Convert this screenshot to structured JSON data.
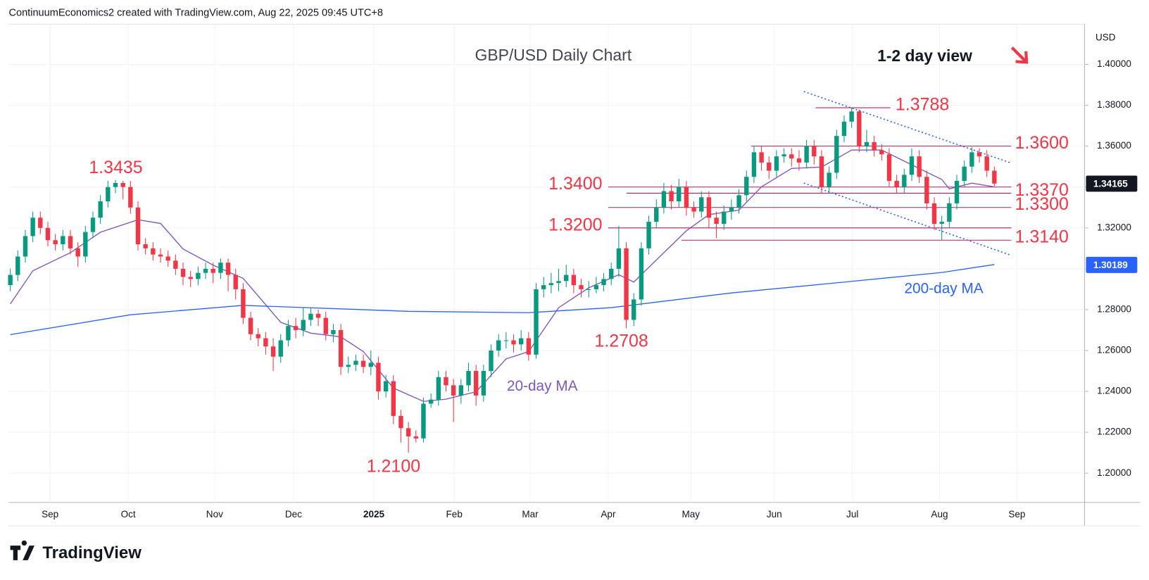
{
  "header": "ContinuumEconomics2 created with TradingView.com, Aug 22, 2025 09:45 UTC+8",
  "brand": "TradingView",
  "chart_data": {
    "type": "candlestick",
    "title": "GBP/USD Daily Chart",
    "view_label": "1-2 day view",
    "currency": "USD",
    "grid": true,
    "xlim": [
      -0.2,
      143
    ],
    "xticks": [
      {
        "value": 5.3,
        "label": "Sep"
      },
      {
        "value": 15.7,
        "label": "Oct"
      },
      {
        "value": 27.2,
        "label": "Nov"
      },
      {
        "value": 37.7,
        "label": "Dec"
      },
      {
        "value": 48.4,
        "label": "2025"
      },
      {
        "value": 59.1,
        "label": "Feb"
      },
      {
        "value": 69.2,
        "label": "Mar"
      },
      {
        "value": 79.6,
        "label": "Apr"
      },
      {
        "value": 90.6,
        "label": "May"
      },
      {
        "value": 101.7,
        "label": "Jun"
      },
      {
        "value": 112.1,
        "label": "Jul"
      },
      {
        "value": 123.7,
        "label": "Aug"
      },
      {
        "value": 134.0,
        "label": "Sep"
      }
    ],
    "ylim": [
      1.1857,
      1.4197
    ],
    "yticks": [
      {
        "value": 1.2,
        "label": "1.20000"
      },
      {
        "value": 1.22,
        "label": "1.22000"
      },
      {
        "value": 1.24,
        "label": "1.24000"
      },
      {
        "value": 1.26,
        "label": "1.26000"
      },
      {
        "value": 1.28,
        "label": "1.28000"
      },
      {
        "value": 1.3,
        "label": "1.30000"
      },
      {
        "value": 1.32,
        "label": "1.32000"
      },
      {
        "value": 1.34,
        "label": "1.34000"
      },
      {
        "value": 1.36,
        "label": "1.36000"
      },
      {
        "value": 1.38,
        "label": "1.38000"
      },
      {
        "value": 1.4,
        "label": "1.40000"
      }
    ],
    "series": [
      {
        "up_color": "#089981",
        "down_color": "#f23645",
        "open": [
          1.292,
          1.297,
          1.306,
          1.316,
          1.325,
          1.32,
          1.314,
          1.312,
          1.316,
          1.31,
          1.306,
          1.318,
          1.325,
          1.333,
          1.34,
          1.342,
          1.34,
          1.33,
          1.312,
          1.31,
          1.307,
          1.306,
          1.304,
          1.3,
          1.296,
          1.295,
          1.298,
          1.3,
          1.298,
          1.303,
          1.297,
          1.29,
          1.276,
          1.268,
          1.266,
          1.262,
          1.257,
          1.265,
          1.272,
          1.27,
          1.275,
          1.278,
          1.276,
          1.268,
          1.27,
          1.252,
          1.253,
          1.255,
          1.252,
          1.254,
          1.24,
          1.245,
          1.228,
          1.222,
          1.218,
          1.217,
          1.234,
          1.236,
          1.247,
          1.243,
          1.238,
          1.243,
          1.25,
          1.238,
          1.25,
          1.26,
          1.265,
          1.265,
          1.263,
          1.266,
          1.258,
          1.29,
          1.292,
          1.293,
          1.294,
          1.297,
          1.292,
          1.29,
          1.29,
          1.292,
          1.295,
          1.3,
          1.31,
          1.275,
          1.285,
          1.31,
          1.323,
          1.33,
          1.338,
          1.333,
          1.34,
          1.33,
          1.328,
          1.335,
          1.325,
          1.322,
          1.328,
          1.33,
          1.336,
          1.345,
          1.357,
          1.352,
          1.348,
          1.355,
          1.356,
          1.354,
          1.352,
          1.36,
          1.355,
          1.34,
          1.347,
          1.365,
          1.372,
          1.377,
          1.36,
          1.362,
          1.358,
          1.356,
          1.343,
          1.34,
          1.346,
          1.355,
          1.345,
          1.332,
          1.322,
          1.323,
          1.332,
          1.343,
          1.35,
          1.357,
          1.355,
          1.348
        ],
        "high": [
          1.3,
          1.309,
          1.319,
          1.328,
          1.328,
          1.323,
          1.317,
          1.319,
          1.319,
          1.313,
          1.321,
          1.328,
          1.336,
          1.343,
          1.3435,
          1.343,
          1.343,
          1.333,
          1.315,
          1.313,
          1.31,
          1.309,
          1.307,
          1.303,
          1.299,
          1.301,
          1.303,
          1.303,
          1.305,
          1.305,
          1.3,
          1.293,
          1.279,
          1.271,
          1.269,
          1.266,
          1.268,
          1.275,
          1.276,
          1.281,
          1.281,
          1.28,
          1.279,
          1.273,
          1.273,
          1.257,
          1.258,
          1.258,
          1.26,
          1.257,
          1.248,
          1.248,
          1.231,
          1.225,
          1.221,
          1.237,
          1.239,
          1.25,
          1.25,
          1.246,
          1.246,
          1.254,
          1.253,
          1.253,
          1.263,
          1.268,
          1.269,
          1.268,
          1.27,
          1.269,
          1.293,
          1.296,
          1.298,
          1.3,
          1.302,
          1.3,
          1.295,
          1.294,
          1.296,
          1.298,
          1.303,
          1.321,
          1.313,
          1.288,
          1.313,
          1.326,
          1.334,
          1.342,
          1.341,
          1.344,
          1.343,
          1.333,
          1.338,
          1.338,
          1.328,
          1.331,
          1.334,
          1.339,
          1.348,
          1.36,
          1.36,
          1.355,
          1.358,
          1.359,
          1.359,
          1.358,
          1.363,
          1.363,
          1.358,
          1.35,
          1.368,
          1.375,
          1.3788,
          1.378,
          1.368,
          1.365,
          1.361,
          1.359,
          1.346,
          1.349,
          1.359,
          1.358,
          1.348,
          1.335,
          1.326,
          1.335,
          1.346,
          1.353,
          1.3595,
          1.359,
          1.358,
          1.35
        ],
        "low": [
          1.289,
          1.294,
          1.303,
          1.313,
          1.317,
          1.311,
          1.309,
          1.309,
          1.307,
          1.301,
          1.303,
          1.315,
          1.322,
          1.33,
          1.337,
          1.334,
          1.327,
          1.309,
          1.307,
          1.304,
          1.303,
          1.301,
          1.297,
          1.292,
          1.291,
          1.292,
          1.295,
          1.293,
          1.295,
          1.289,
          1.285,
          1.273,
          1.265,
          1.262,
          1.258,
          1.25,
          1.254,
          1.262,
          1.266,
          1.267,
          1.272,
          1.272,
          1.265,
          1.264,
          1.248,
          1.249,
          1.25,
          1.249,
          1.248,
          1.236,
          1.237,
          1.224,
          1.215,
          1.21,
          1.215,
          1.215,
          1.232,
          1.233,
          1.24,
          1.225,
          1.234,
          1.24,
          1.233,
          1.235,
          1.247,
          1.257,
          1.261,
          1.259,
          1.26,
          1.255,
          1.256,
          1.286,
          1.288,
          1.289,
          1.291,
          1.288,
          1.286,
          1.286,
          1.288,
          1.289,
          1.292,
          1.296,
          1.2708,
          1.272,
          1.282,
          1.307,
          1.32,
          1.327,
          1.329,
          1.33,
          1.326,
          1.325,
          1.325,
          1.32,
          1.315,
          1.319,
          1.324,
          1.327,
          1.333,
          1.342,
          1.348,
          1.344,
          1.345,
          1.352,
          1.35,
          1.348,
          1.349,
          1.351,
          1.337,
          1.337,
          1.344,
          1.362,
          1.369,
          1.357,
          1.357,
          1.355,
          1.353,
          1.34,
          1.337,
          1.337,
          1.343,
          1.342,
          1.329,
          1.319,
          1.314,
          1.32,
          1.329,
          1.34,
          1.347,
          1.352,
          1.345,
          1.3405
        ],
        "close": [
          1.297,
          1.306,
          1.316,
          1.325,
          1.32,
          1.314,
          1.312,
          1.316,
          1.31,
          1.306,
          1.318,
          1.325,
          1.333,
          1.34,
          1.342,
          1.34,
          1.33,
          1.312,
          1.31,
          1.307,
          1.306,
          1.304,
          1.3,
          1.296,
          1.295,
          1.298,
          1.3,
          1.298,
          1.303,
          1.297,
          1.29,
          1.276,
          1.268,
          1.266,
          1.262,
          1.257,
          1.265,
          1.272,
          1.27,
          1.275,
          1.278,
          1.276,
          1.268,
          1.27,
          1.252,
          1.253,
          1.255,
          1.252,
          1.254,
          1.24,
          1.245,
          1.228,
          1.222,
          1.218,
          1.217,
          1.234,
          1.236,
          1.247,
          1.243,
          1.238,
          1.243,
          1.25,
          1.238,
          1.25,
          1.26,
          1.265,
          1.265,
          1.263,
          1.266,
          1.258,
          1.29,
          1.292,
          1.293,
          1.294,
          1.297,
          1.292,
          1.29,
          1.29,
          1.292,
          1.295,
          1.3,
          1.31,
          1.275,
          1.285,
          1.31,
          1.323,
          1.33,
          1.338,
          1.333,
          1.34,
          1.33,
          1.328,
          1.335,
          1.325,
          1.322,
          1.328,
          1.33,
          1.336,
          1.345,
          1.357,
          1.352,
          1.348,
          1.355,
          1.356,
          1.354,
          1.352,
          1.36,
          1.355,
          1.34,
          1.347,
          1.365,
          1.372,
          1.377,
          1.36,
          1.362,
          1.358,
          1.356,
          1.343,
          1.34,
          1.346,
          1.355,
          1.345,
          1.332,
          1.322,
          1.323,
          1.332,
          1.343,
          1.35,
          1.357,
          1.355,
          1.348,
          1.3417
        ]
      }
    ],
    "lines": [
      {
        "name": "20-day MA",
        "color": "#7e57c2",
        "x": [
          0,
          3,
          8,
          12,
          17,
          20,
          23,
          27,
          31,
          36,
          40,
          44,
          47,
          51,
          55,
          58,
          62,
          66,
          69,
          73,
          77,
          81,
          83,
          86,
          90,
          93,
          97,
          100,
          104,
          108,
          112,
          116,
          120,
          124,
          125,
          128,
          131
        ],
        "values": [
          1.2828,
          1.299,
          1.3079,
          1.3179,
          1.324,
          1.3222,
          1.3097,
          1.3018,
          1.2953,
          1.2738,
          1.2685,
          1.2667,
          1.2595,
          1.2416,
          1.2351,
          1.2362,
          1.2398,
          1.2559,
          1.2595,
          1.281,
          1.2907,
          1.2971,
          1.2935,
          1.3043,
          1.3186,
          1.3265,
          1.3287,
          1.3401,
          1.3491,
          1.3498,
          1.3581,
          1.3581,
          1.3509,
          1.3437,
          1.3391,
          1.3419,
          1.3401
        ]
      },
      {
        "name": "200-day MA",
        "color": "#2962ff",
        "x": [
          0,
          16,
          31,
          53,
          69,
          80,
          96,
          111,
          124,
          131
        ],
        "values": [
          1.2678,
          1.2775,
          1.2821,
          1.2792,
          1.2785,
          1.281,
          1.2882,
          1.2935,
          1.2982,
          1.3021
        ]
      }
    ],
    "levels": [
      1.3788,
      {
        "value": 1.36,
        "label": "1.3600"
      },
      {
        "value": 1.34,
        "label": "1.3400"
      },
      {
        "value": 1.337,
        "label": "1.3370"
      },
      {
        "value": 1.33,
        "label": "1.3300"
      },
      {
        "value": 1.32,
        "label": "1.3200"
      },
      {
        "value": 1.314,
        "label": "1.3140"
      }
    ],
    "price_labels": [
      1.3435,
      {
        "value": 1.21,
        "label": "1.2100"
      },
      1.2708
    ],
    "price_tags": [
      {
        "value": 1.34165,
        "color": "#131722"
      },
      {
        "value": 1.30189,
        "color": "#2962ff"
      }
    ]
  }
}
